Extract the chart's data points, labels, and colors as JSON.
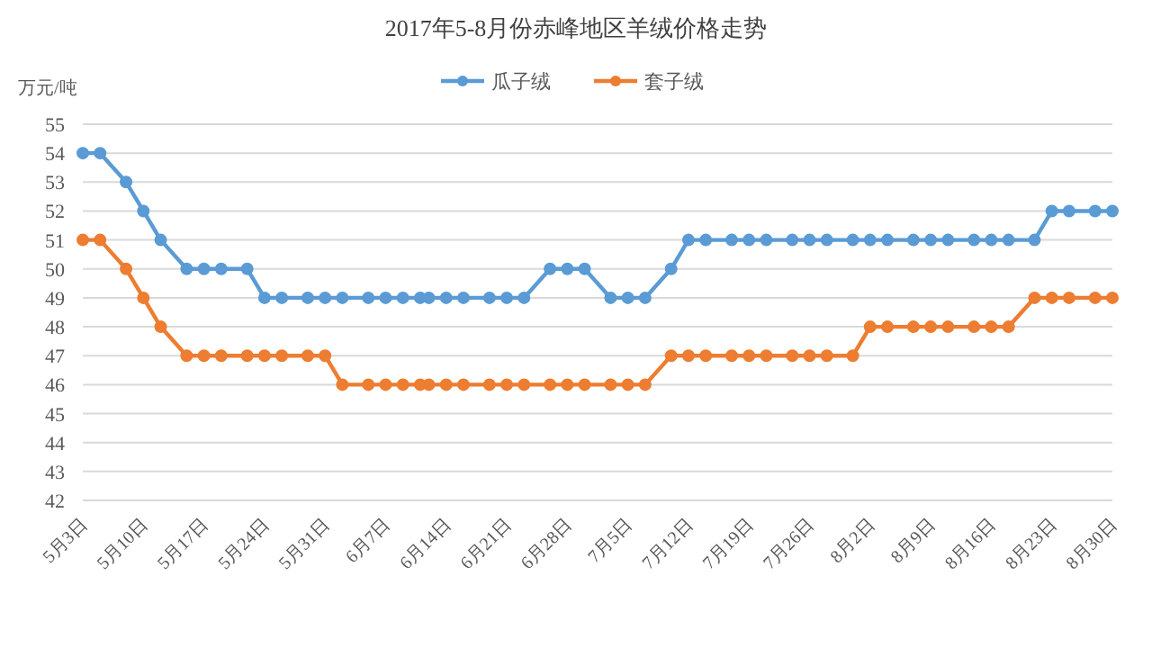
{
  "chart_data": {
    "type": "line",
    "title": "2017年5-8月份赤峰地区羊绒价格走势",
    "ylabel": "万元/吨",
    "x": [
      "2017-05-03",
      "2017-05-05",
      "2017-05-08",
      "2017-05-10",
      "2017-05-12",
      "2017-05-15",
      "2017-05-17",
      "2017-05-19",
      "2017-05-22",
      "2017-05-24",
      "2017-05-26",
      "2017-05-29",
      "2017-05-31",
      "2017-06-02",
      "2017-06-05",
      "2017-06-07",
      "2017-06-09",
      "2017-06-11",
      "2017-06-12",
      "2017-06-14",
      "2017-06-16",
      "2017-06-19",
      "2017-06-21",
      "2017-06-23",
      "2017-06-26",
      "2017-06-28",
      "2017-06-30",
      "2017-07-03",
      "2017-07-05",
      "2017-07-07",
      "2017-07-10",
      "2017-07-12",
      "2017-07-14",
      "2017-07-17",
      "2017-07-19",
      "2017-07-21",
      "2017-07-24",
      "2017-07-26",
      "2017-07-28",
      "2017-07-31",
      "2017-08-02",
      "2017-08-04",
      "2017-08-07",
      "2017-08-09",
      "2017-08-11",
      "2017-08-14",
      "2017-08-16",
      "2017-08-18",
      "2017-08-21",
      "2017-08-23",
      "2017-08-25",
      "2017-08-28",
      "2017-08-30"
    ],
    "series": [
      {
        "name": "瓜子绒",
        "color": "#5b9bd5",
        "values": [
          54,
          54,
          53,
          52,
          51,
          50,
          50,
          50,
          50,
          49,
          49,
          49,
          49,
          49,
          49,
          49,
          49,
          49,
          49,
          49,
          49,
          49,
          49,
          49,
          50,
          50,
          50,
          49,
          49,
          49,
          50,
          51,
          51,
          51,
          51,
          51,
          51,
          51,
          51,
          51,
          51,
          51,
          51,
          51,
          51,
          51,
          51,
          51,
          51,
          52,
          52,
          52,
          52
        ]
      },
      {
        "name": "套子绒",
        "color": "#ed7d31",
        "values": [
          51,
          51,
          50,
          49,
          48,
          47,
          47,
          47,
          47,
          47,
          47,
          47,
          47,
          46,
          46,
          46,
          46,
          46,
          46,
          46,
          46,
          46,
          46,
          46,
          46,
          46,
          46,
          46,
          46,
          46,
          47,
          47,
          47,
          47,
          47,
          47,
          47,
          47,
          47,
          47,
          48,
          48,
          48,
          48,
          48,
          48,
          48,
          48,
          49,
          49,
          49,
          49,
          49
        ]
      }
    ],
    "xlim": [
      "2017-05-03",
      "2017-08-30"
    ],
    "xticks": [
      {
        "value": "2017-05-03",
        "label": "5月3日"
      },
      {
        "value": "2017-05-10",
        "label": "5月10日"
      },
      {
        "value": "2017-05-17",
        "label": "5月17日"
      },
      {
        "value": "2017-05-24",
        "label": "5月24日"
      },
      {
        "value": "2017-05-31",
        "label": "5月31日"
      },
      {
        "value": "2017-06-07",
        "label": "6月7日"
      },
      {
        "value": "2017-06-14",
        "label": "6月14日"
      },
      {
        "value": "2017-06-21",
        "label": "6月21日"
      },
      {
        "value": "2017-06-28",
        "label": "6月28日"
      },
      {
        "value": "2017-07-05",
        "label": "7月5日"
      },
      {
        "value": "2017-07-12",
        "label": "7月12日"
      },
      {
        "value": "2017-07-19",
        "label": "7月19日"
      },
      {
        "value": "2017-07-26",
        "label": "7月26日"
      },
      {
        "value": "2017-08-02",
        "label": "8月2日"
      },
      {
        "value": "2017-08-09",
        "label": "8月9日"
      },
      {
        "value": "2017-08-16",
        "label": "8月16日"
      },
      {
        "value": "2017-08-23",
        "label": "8月23日"
      },
      {
        "value": "2017-08-30",
        "label": "8月30日"
      }
    ],
    "ylim": [
      42,
      55
    ],
    "yticks": [
      42,
      43,
      44,
      45,
      46,
      47,
      48,
      49,
      50,
      51,
      52,
      53,
      54,
      55
    ],
    "grid": "y",
    "legend": "top",
    "marker": "circle",
    "line_style": "solid"
  }
}
